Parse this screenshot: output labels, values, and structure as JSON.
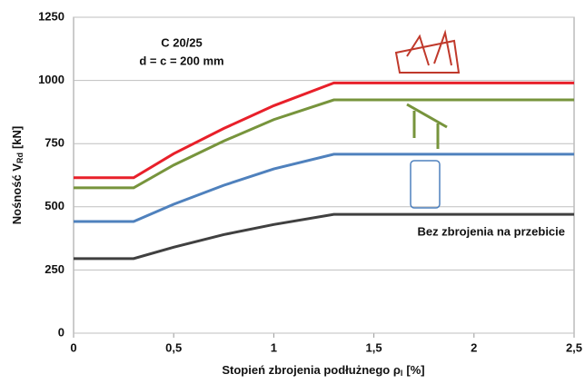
{
  "chart_data": {
    "type": "line",
    "title": "C 20/25",
    "subtitle": "d = c = 200 mm",
    "annotation": "Bez zbrojenia na przebicie",
    "x_label": {
      "main": "Stopień zbrojenia podłużnego ρ",
      "sub": "l",
      "unit": "[%]"
    },
    "y_label": {
      "main": "Nośność V",
      "sub": "Rd",
      "unit": "[kN]"
    },
    "x": [
      0,
      0.3,
      0.5,
      0.75,
      1,
      1.3,
      2.5
    ],
    "series": [
      {
        "color": "#e8202a",
        "values": [
          615,
          615,
          710,
          810,
          900,
          990,
          990
        ]
      },
      {
        "color": "#77943c",
        "values": [
          575,
          575,
          665,
          760,
          845,
          923,
          923
        ]
      },
      {
        "color": "#4f81bd",
        "values": [
          442,
          442,
          510,
          585,
          650,
          708,
          708
        ]
      },
      {
        "color": "#404040",
        "values": [
          295,
          295,
          340,
          390,
          430,
          470,
          470
        ]
      }
    ],
    "xlim": [
      0,
      2.5
    ],
    "xticks": [
      0,
      {
        "value": 0.5,
        "label": "0,5"
      },
      1,
      {
        "value": 1.5,
        "label": "1,5"
      },
      2,
      {
        "value": 2.5,
        "label": "2,5"
      }
    ],
    "ylim": [
      0,
      1250
    ],
    "yticks": [
      0,
      250,
      500,
      750,
      1000,
      1250
    ],
    "grid": true
  }
}
